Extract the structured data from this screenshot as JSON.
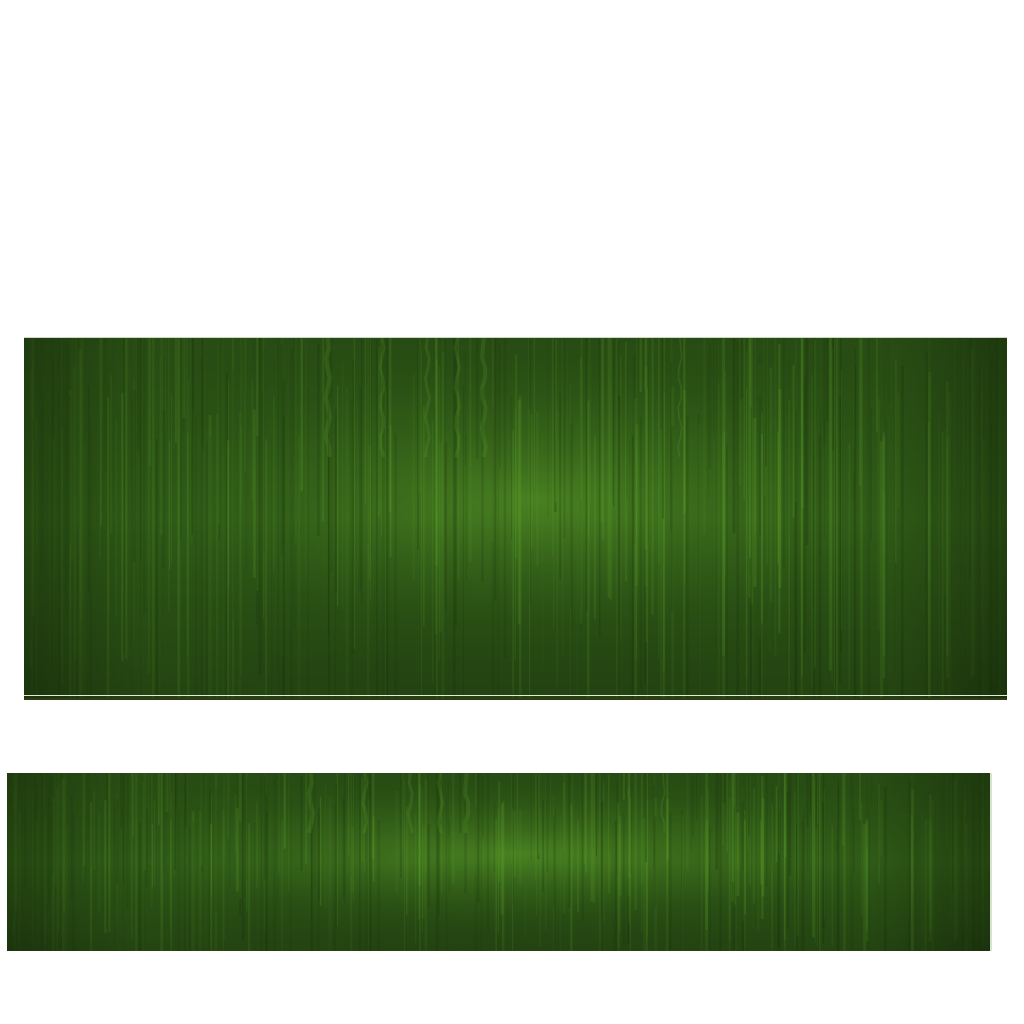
{
  "image": {
    "description_free": true,
    "panels": [
      {
        "id": "top",
        "kind": "green striated texture",
        "base_color": "#2f5a17",
        "edge_color": "#1f3c0e",
        "highlight_color": "#5fa32a"
      },
      {
        "id": "bottom",
        "kind": "green striated texture",
        "base_color": "#2f5a17",
        "edge_color": "#1f3c0e",
        "highlight_color": "#5fa32a"
      }
    ]
  }
}
